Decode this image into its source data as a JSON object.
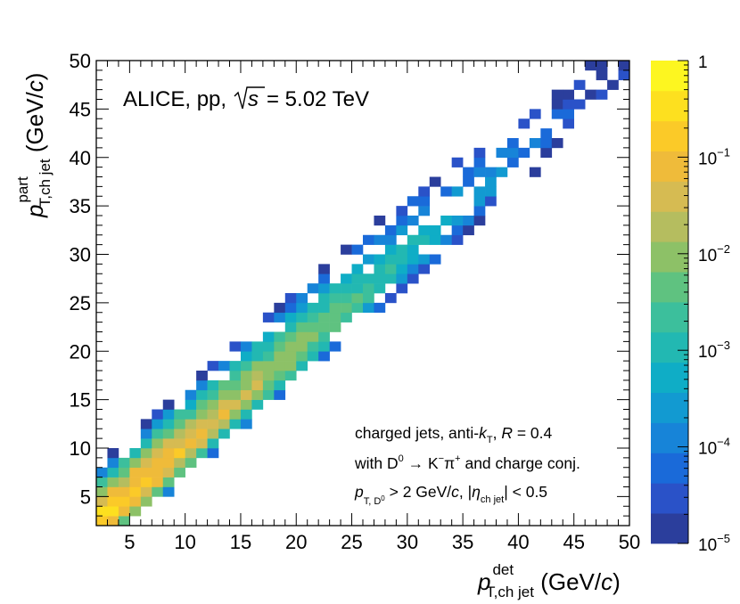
{
  "chart_data": {
    "type": "heatmap",
    "experiment_label": "ALICE, pp,",
    "energy_label": "= 5.02 TeV",
    "sqrt_s": "s",
    "xlabel": {
      "main": "p",
      "sup": "det",
      "sub": "T,ch jet",
      "unit": " (GeV/",
      "unit_c": "c",
      "unit_close": ")"
    },
    "ylabel": {
      "main": "p",
      "sup": "part",
      "sub": "T,ch jet",
      "unit": " (GeV/",
      "unit_c": "c",
      "unit_close": ")"
    },
    "xlim": [
      2,
      50
    ],
    "ylim": [
      2,
      50
    ],
    "bin_width": 1,
    "xticks": [
      5,
      10,
      15,
      20,
      25,
      30,
      35,
      40,
      45,
      50
    ],
    "yticks": [
      5,
      10,
      15,
      20,
      25,
      30,
      35,
      40,
      45,
      50
    ],
    "colorbar": {
      "scale": "log",
      "range": [
        1e-05,
        1
      ],
      "ticks": [
        {
          "base": "10",
          "exp": "−5"
        },
        {
          "base": "10",
          "exp": "−4"
        },
        {
          "base": "10",
          "exp": "−3"
        },
        {
          "base": "10",
          "exp": "−2"
        },
        {
          "base": "10",
          "exp": "−1"
        },
        {
          "base": "1",
          "exp": ""
        }
      ],
      "colors": [
        "#2b3e9c",
        "#2a52c8",
        "#1a6ad9",
        "#1784d8",
        "#129ad1",
        "#0fadc6",
        "#22b8b2",
        "#3cbf9c",
        "#5fc280",
        "#8dc167",
        "#b5bd5f",
        "#d6bb52",
        "#efbb3a",
        "#fbca28",
        "#fde01f",
        "#fdf620"
      ]
    },
    "annotations": [
      {
        "parts": [
          "charged jets, anti-",
          "k",
          "T",
          ", ",
          "R",
          " = 0.4"
        ]
      },
      {
        "parts": [
          "with D",
          "0",
          " → K",
          "−",
          "π",
          "+",
          " and charge conj."
        ]
      },
      {
        "parts": [
          "p",
          "T, D",
          "0",
          " > 2 GeV/",
          "c",
          ", |",
          "η",
          "ch jet",
          "| < 0.5"
        ]
      }
    ],
    "response_model": {
      "diag_peak_log10": -0.2,
      "diag_slope": -0.095,
      "diag_floor": -4.6,
      "band_sigma_base": 1.2,
      "band_sigma_slope": 0.035,
      "tail_exponent": 1.7,
      "sparse_threshold": -3.1
    }
  }
}
